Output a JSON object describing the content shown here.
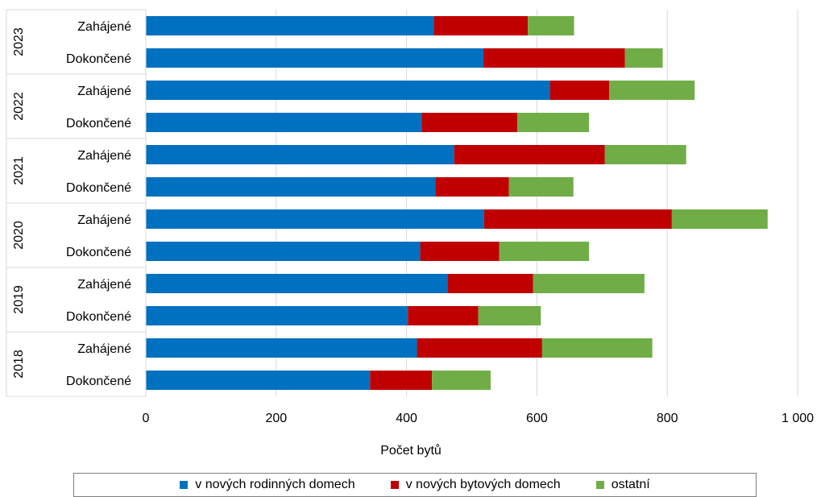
{
  "chart_data": {
    "type": "bar",
    "orientation": "horizontal",
    "stacked": true,
    "xlabel": "Počet bytů",
    "xlim": [
      0,
      1000
    ],
    "xticks": [
      0,
      200,
      400,
      600,
      800,
      1000
    ],
    "xtick_labels": [
      "0",
      "200",
      "400",
      "600",
      "800",
      "1 000"
    ],
    "grid": true,
    "legend_position": "bottom",
    "groups": [
      {
        "year": "2023",
        "rows": [
          {
            "label": "Zahájené",
            "values": [
              442,
              144,
              71
            ]
          },
          {
            "label": "Dokončené",
            "values": [
              518,
              217,
              58
            ]
          }
        ]
      },
      {
        "year": "2022",
        "rows": [
          {
            "label": "Zahájené",
            "values": [
              620,
              91,
              131
            ]
          },
          {
            "label": "Dokončené",
            "values": [
              423,
              147,
              110
            ]
          }
        ]
      },
      {
        "year": "2021",
        "rows": [
          {
            "label": "Zahájené",
            "values": [
              473,
              231,
              125
            ]
          },
          {
            "label": "Dokončené",
            "values": [
              444,
              113,
              99
            ]
          }
        ]
      },
      {
        "year": "2020",
        "rows": [
          {
            "label": "Zahájené",
            "values": [
              519,
              288,
              147
            ]
          },
          {
            "label": "Dokončené",
            "values": [
              421,
              121,
              138
            ]
          }
        ]
      },
      {
        "year": "2019",
        "rows": [
          {
            "label": "Zahájené",
            "values": [
              463,
              131,
              171
            ]
          },
          {
            "label": "Dokončené",
            "values": [
              402,
              108,
              96
            ]
          }
        ]
      },
      {
        "year": "2018",
        "rows": [
          {
            "label": "Zahájené",
            "values": [
              416,
              192,
              169
            ]
          },
          {
            "label": "Dokončené",
            "values": [
              344,
              95,
              90
            ]
          }
        ]
      }
    ],
    "series": [
      {
        "name": "v nových rodinných domech",
        "color": "#0070C0"
      },
      {
        "name": "v nových bytových domech",
        "color": "#C00000"
      },
      {
        "name": "ostatní",
        "color": "#70AD47"
      }
    ]
  }
}
